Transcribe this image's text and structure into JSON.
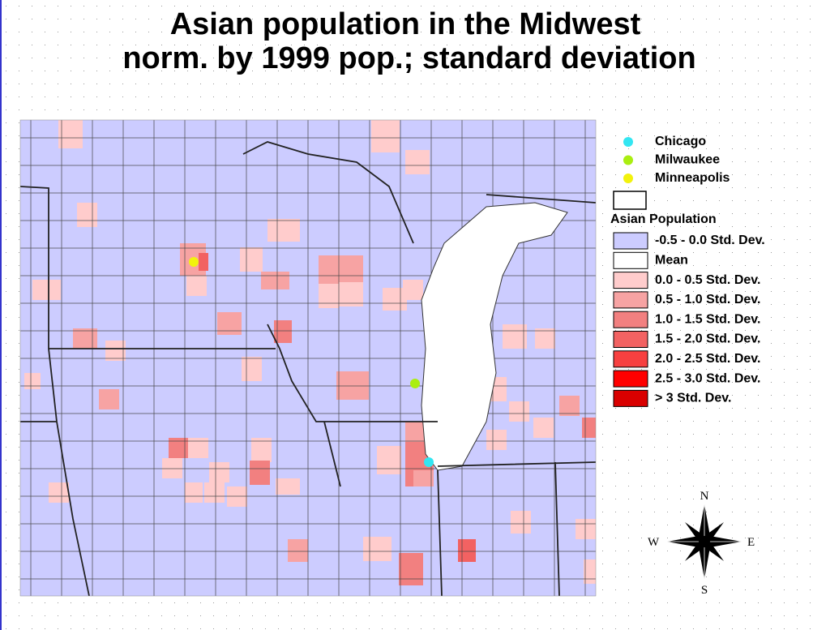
{
  "title": [
    "Asian population in the Midwest",
    "norm. by 1999 pop.; standard deviation"
  ],
  "cities": [
    {
      "label": "Chicago",
      "color": "#33e6f2"
    },
    {
      "label": "Milwaukee",
      "color": "#aaee11"
    },
    {
      "label": "Minneapolis",
      "color": "#f2f20d"
    }
  ],
  "legend": {
    "title": "Asian Population",
    "classes": [
      {
        "label": "-0.5 - 0.0 Std. Dev.",
        "color": "#ccccff"
      },
      {
        "label": "Mean",
        "color": "#ffffff"
      },
      {
        "label": "0.0 - 0.5 Std. Dev.",
        "color": "#ffcccc"
      },
      {
        "label": "0.5 - 1.0 Std. Dev.",
        "color": "#f7a3a3"
      },
      {
        "label": "1.0 - 1.5 Std. Dev.",
        "color": "#f28080"
      },
      {
        "label": "1.5 - 2.0 Std. Dev.",
        "color": "#f26262"
      },
      {
        "label": "2.0 - 2.5 Std. Dev.",
        "color": "#f74040"
      },
      {
        "label": "2.5 - 3.0 Std. Dev.",
        "color": "#ff0000"
      },
      {
        "label": "> 3 Std. Dev.",
        "color": "#d90000"
      }
    ]
  },
  "compass": {
    "n": "N",
    "s": "S",
    "e": "E",
    "w": "W"
  }
}
